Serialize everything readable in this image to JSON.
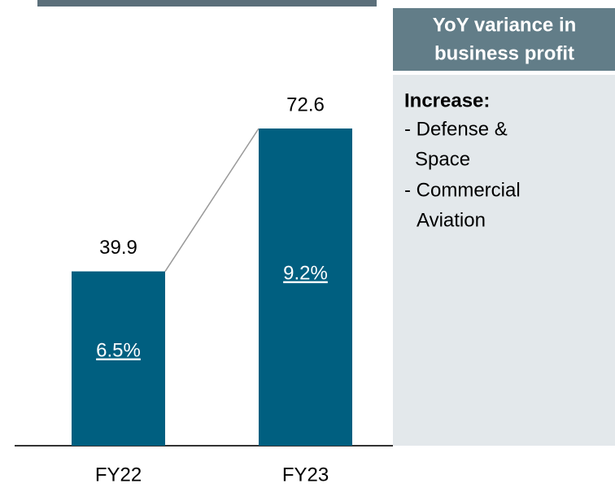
{
  "chart_data": {
    "type": "bar",
    "categories": [
      "FY22",
      "FY23"
    ],
    "values": [
      39.9,
      72.6
    ],
    "color": "#005f80",
    "margins": {
      "values": [
        6.5,
        9.2
      ],
      "value_labels": [
        "6.5%",
        "9.2%"
      ]
    },
    "connector": true
  },
  "panel": {
    "title_lines": [
      "YoY variance in",
      "business profit"
    ],
    "heading": "Increase:",
    "lines": [
      "- Defense &",
      "Space",
      "- Commercial",
      "Aviation"
    ]
  }
}
